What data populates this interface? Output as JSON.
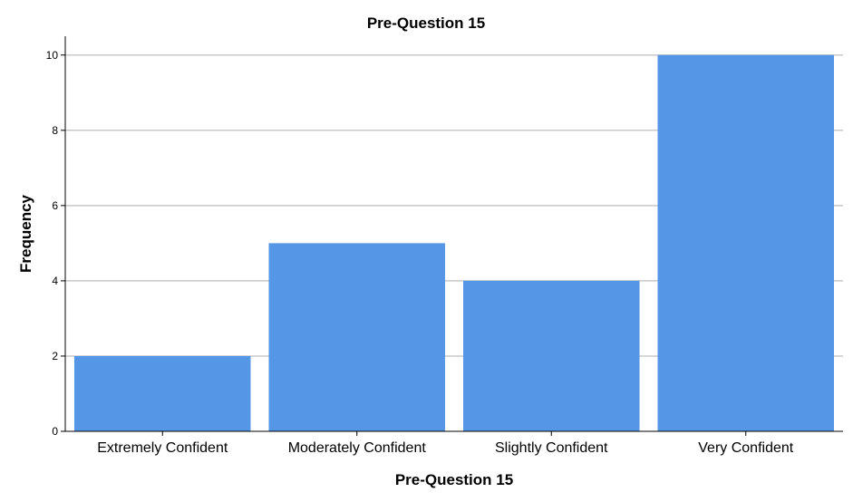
{
  "chart_data": {
    "type": "bar",
    "title": "Pre-Question 15",
    "xlabel": "Pre-Question 15",
    "ylabel": "Frequency",
    "categories": [
      "Extremely Confident",
      "Moderately Confident",
      "Slightly Confident",
      "Very Confident"
    ],
    "values": [
      2,
      5,
      4,
      10
    ],
    "ylim": [
      0,
      10.5
    ],
    "yticks": [
      0,
      2,
      4,
      6,
      8,
      10
    ],
    "grid": true,
    "bar_color": "#5596e6",
    "grid_color": "#c8c8c8",
    "axis_color": "#000000"
  }
}
